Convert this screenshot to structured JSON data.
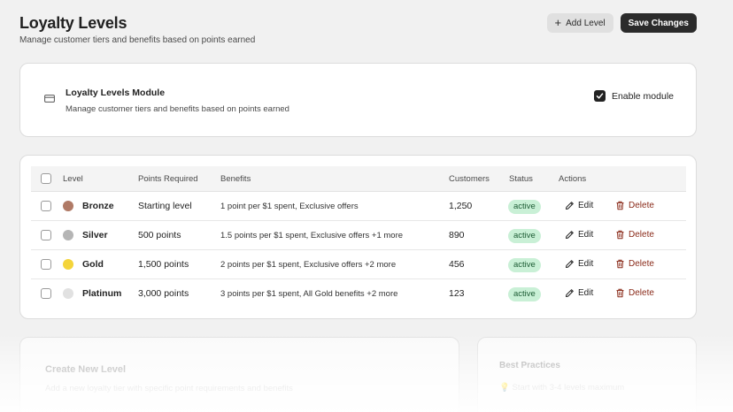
{
  "header": {
    "title": "Loyalty Levels",
    "subtitle": "Manage customer tiers and benefits based on points earned",
    "add_level_label": "Add Level",
    "save_label": "Save Changes"
  },
  "module": {
    "title": "Loyalty Levels Module",
    "description": "Manage customer tiers and benefits based on points earned",
    "enable_label": "Enable module",
    "enabled": true
  },
  "table": {
    "columns": [
      "Level",
      "Points Required",
      "Benefits",
      "Customers",
      "Status",
      "Actions"
    ],
    "rows": [
      {
        "level": "Bronze",
        "color": "#b07a66",
        "points": "Starting level",
        "benefits": "1 point per $1 spent, Exclusive offers",
        "customers": "1,250",
        "status": "active"
      },
      {
        "level": "Silver",
        "color": "#b5b5b5",
        "points": "500 points",
        "benefits": "1.5 points per $1 spent, Exclusive offers +1 more",
        "customers": "890",
        "status": "active"
      },
      {
        "level": "Gold",
        "color": "#f4d43a",
        "points": "1,500 points",
        "benefits": "2 points per $1 spent, Exclusive offers +2 more",
        "customers": "456",
        "status": "active"
      },
      {
        "level": "Platinum",
        "color": "#e1e1e1",
        "points": "3,000 points",
        "benefits": "3 points per $1 spent, All Gold benefits +2 more",
        "customers": "123",
        "status": "active"
      }
    ],
    "edit_label": "Edit",
    "delete_label": "Delete"
  },
  "create_card": {
    "title": "Create New Level",
    "description": "Add a new loyalty tier with specific point requirements and benefits"
  },
  "best_practices": {
    "title": "Best Practices",
    "tip": "Start with 3-4 levels maximum"
  },
  "colors": {
    "status_bg": "#c9f0d6",
    "status_text": "#1d5c34",
    "delete": "#8a2b1a",
    "primary_button": "#2b2b2b"
  },
  "icons": [
    "plus-icon",
    "credit-card-icon",
    "checkmark-icon",
    "pencil-icon",
    "trash-icon",
    "lightbulb-icon"
  ]
}
